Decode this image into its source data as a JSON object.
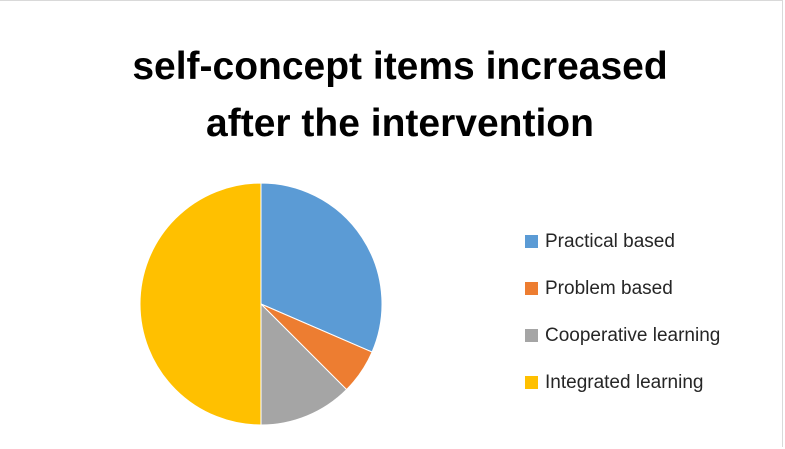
{
  "chart_data": {
    "type": "pie",
    "title_lines": [
      "self-concept items increased",
      "after the  intervention"
    ],
    "categories": [
      "Practical based",
      "Problem based",
      "Cooperative learning",
      "Integrated learning"
    ],
    "values": [
      31.5,
      6,
      12.5,
      50
    ],
    "colors": [
      "#5b9bd5",
      "#ed7d31",
      "#a5a5a5",
      "#ffc000"
    ],
    "legend_position": "right",
    "start_angle_deg": 0,
    "direction": "clockwise"
  }
}
